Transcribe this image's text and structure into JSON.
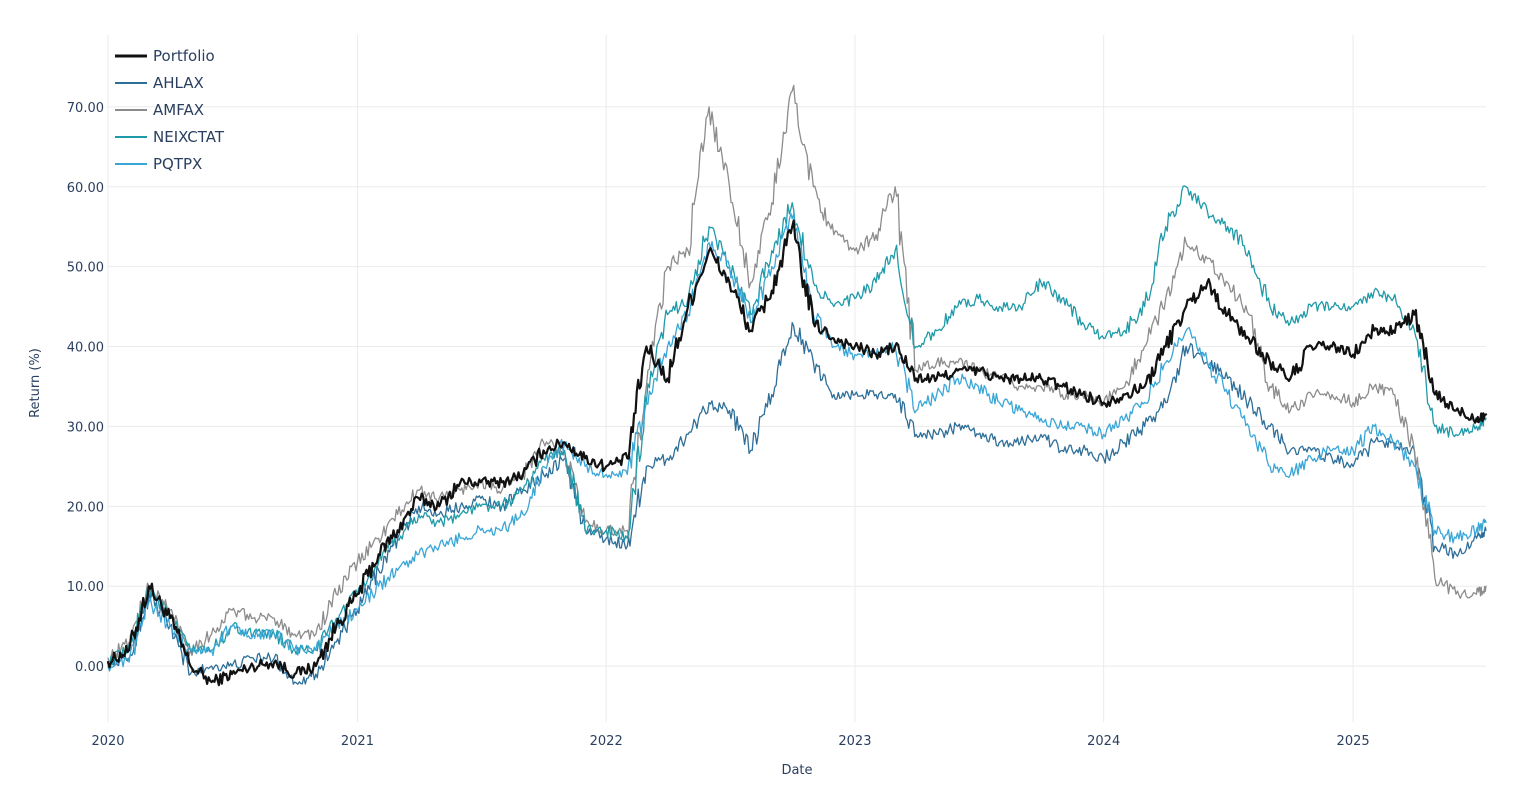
{
  "chart_data": {
    "type": "line",
    "xlabel": "Date",
    "ylabel": "Return (%)",
    "xlim": [
      "2020-01-01",
      "2025-07-15"
    ],
    "ylim": [
      -7,
      79
    ],
    "x_ticks": [
      "2020",
      "2021",
      "2022",
      "2023",
      "2024",
      "2025"
    ],
    "y_ticks": [
      "0.00",
      "10.00",
      "20.00",
      "30.00",
      "40.00",
      "50.00",
      "60.00",
      "70.00"
    ],
    "grid": true,
    "legend_position": "top-left",
    "x": [
      "2020-01-01",
      "2020-02-01",
      "2020-03-01",
      "2020-04-01",
      "2020-05-01",
      "2020-06-01",
      "2020-07-01",
      "2020-08-01",
      "2020-09-01",
      "2020-10-01",
      "2020-11-01",
      "2020-12-01",
      "2021-01-01",
      "2021-02-01",
      "2021-03-01",
      "2021-04-01",
      "2021-05-01",
      "2021-06-01",
      "2021-07-01",
      "2021-08-01",
      "2021-09-01",
      "2021-10-01",
      "2021-11-01",
      "2021-12-01",
      "2022-01-01",
      "2022-02-01",
      "2022-03-01",
      "2022-04-01",
      "2022-05-01",
      "2022-06-01",
      "2022-07-01",
      "2022-08-01",
      "2022-09-01",
      "2022-10-01",
      "2022-11-01",
      "2022-12-01",
      "2023-01-01",
      "2023-02-01",
      "2023-03-01",
      "2023-04-01",
      "2023-05-01",
      "2023-06-01",
      "2023-07-01",
      "2023-08-01",
      "2023-09-01",
      "2023-10-01",
      "2023-11-01",
      "2023-12-01",
      "2024-01-01",
      "2024-02-01",
      "2024-03-01",
      "2024-04-01",
      "2024-05-01",
      "2024-06-01",
      "2024-07-01",
      "2024-08-01",
      "2024-09-01",
      "2024-10-01",
      "2024-11-01",
      "2024-12-01",
      "2025-01-01",
      "2025-02-01",
      "2025-03-01",
      "2025-04-01",
      "2025-05-01",
      "2025-06-01",
      "2025-07-01",
      "2025-07-15"
    ],
    "series": [
      {
        "name": "Portfolio",
        "color": "#111111",
        "width": 2.2,
        "values": [
          0.5,
          2,
          10,
          6,
          0,
          -2,
          -1,
          0,
          0.5,
          -1,
          0,
          5,
          9,
          14,
          17,
          21,
          20,
          23,
          23,
          23,
          24,
          27,
          28,
          26,
          25,
          26,
          40,
          36,
          45,
          52,
          48,
          42,
          47,
          55,
          43,
          41,
          40,
          39,
          40,
          36,
          36,
          37,
          37,
          36,
          36,
          36,
          35,
          34,
          33,
          34,
          35,
          40,
          45,
          48,
          44,
          41,
          38,
          36,
          40,
          40,
          39,
          42,
          42,
          44,
          34,
          32,
          31,
          31.5
        ]
      },
      {
        "name": "AHLAX",
        "color": "#2e6f99",
        "width": 1.3,
        "values": [
          0.5,
          1,
          9,
          5,
          -1,
          0,
          0,
          1,
          1,
          -2,
          -1,
          3,
          7,
          12,
          16,
          20,
          19,
          20,
          21,
          20,
          22,
          24,
          26,
          17,
          16,
          15,
          25,
          26,
          29,
          33,
          32,
          27,
          34,
          43,
          38,
          34,
          34,
          34,
          34,
          29,
          29,
          30,
          29,
          28,
          28,
          29,
          27,
          27,
          26,
          28,
          30,
          33,
          40,
          38,
          36,
          33,
          30,
          27,
          27,
          26,
          25,
          28,
          28,
          27,
          15,
          14,
          16,
          17
        ]
      },
      {
        "name": "AMFAX",
        "color": "#8c8c8c",
        "width": 1.3,
        "values": [
          1,
          3,
          10,
          7,
          2,
          4,
          7,
          6,
          6,
          4,
          4,
          9,
          13,
          16,
          19,
          22,
          21,
          22,
          23,
          22,
          24,
          28,
          27,
          18,
          17,
          17,
          35,
          50,
          52,
          70,
          60,
          48,
          58,
          72,
          60,
          54,
          52,
          54,
          60,
          37,
          38,
          38,
          37,
          36,
          35,
          35,
          34,
          34,
          33,
          35,
          40,
          46,
          53,
          51,
          48,
          44,
          35,
          32,
          34,
          34,
          33,
          35,
          34,
          27,
          11,
          9,
          9,
          10
        ]
      },
      {
        "name": "NEIXCTAT",
        "color": "#1f9aa8",
        "width": 1.3,
        "values": [
          0.5,
          2,
          10,
          6,
          2,
          2,
          5,
          4,
          4,
          2,
          2,
          6,
          9,
          13,
          16,
          19,
          18,
          19,
          20,
          20,
          22,
          26,
          27,
          17,
          17,
          16,
          33,
          44,
          46,
          55,
          50,
          44,
          52,
          58,
          48,
          45,
          46,
          48,
          52,
          40,
          42,
          45,
          46,
          45,
          45,
          48,
          46,
          43,
          41,
          42,
          45,
          55,
          60,
          57,
          55,
          52,
          45,
          43,
          45,
          45,
          45,
          47,
          46,
          42,
          30,
          29,
          30,
          31
        ]
      },
      {
        "name": "PQTPX",
        "color": "#3aa6d6",
        "width": 1.3,
        "values": [
          0,
          0.5,
          8,
          5,
          2,
          2,
          5,
          4,
          4,
          2,
          2,
          5,
          7,
          10,
          12,
          14,
          15,
          16,
          17,
          17,
          19,
          25,
          28,
          25,
          24,
          24,
          33,
          40,
          44,
          53,
          50,
          43,
          50,
          56,
          44,
          40,
          39,
          39,
          40,
          32,
          34,
          36,
          35,
          33,
          32,
          31,
          30,
          30,
          29,
          31,
          33,
          38,
          42,
          38,
          34,
          30,
          25,
          24,
          26,
          27,
          27,
          30,
          28,
          25,
          17,
          16,
          17,
          18
        ]
      }
    ]
  }
}
